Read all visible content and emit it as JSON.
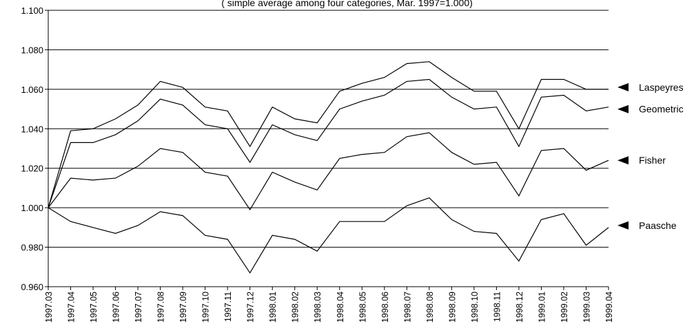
{
  "chart_data": {
    "type": "line",
    "subtitle": "( simple average among four categories, Mar. 1997=1.000)",
    "xlabel": "",
    "ylabel": "",
    "ylim": [
      0.96,
      1.1
    ],
    "y_ticks": [
      "0.960",
      "0.980",
      "1.000",
      "1.020",
      "1.040",
      "1.060",
      "1.080",
      "1.100"
    ],
    "grid": "horizontal",
    "legend": "right, labels with arrows",
    "x": [
      "1997.03",
      "1997.04",
      "1997.05",
      "1997.06",
      "1997.07",
      "1997.08",
      "1997.09",
      "1997.10",
      "1997.11",
      "1997.12",
      "1998.01",
      "1998.02",
      "1998.03",
      "1998.04",
      "1998.05",
      "1998.06",
      "1998.07",
      "1998.08",
      "1998.09",
      "1998.10",
      "1998.11",
      "1998.12",
      "1999.01",
      "1999.02",
      "1999.03",
      "1999.04"
    ],
    "series": [
      {
        "name": "Laspeyres",
        "values": [
          1.0,
          1.039,
          1.04,
          1.045,
          1.052,
          1.064,
          1.061,
          1.051,
          1.049,
          1.031,
          1.051,
          1.045,
          1.043,
          1.059,
          1.063,
          1.066,
          1.073,
          1.074,
          1.066,
          1.059,
          1.059,
          1.04,
          1.065,
          1.065,
          1.06,
          1.06
        ]
      },
      {
        "name": "Geometric",
        "values": [
          1.0,
          1.033,
          1.033,
          1.037,
          1.044,
          1.055,
          1.052,
          1.042,
          1.04,
          1.023,
          1.042,
          1.037,
          1.034,
          1.05,
          1.054,
          1.057,
          1.064,
          1.065,
          1.056,
          1.05,
          1.051,
          1.031,
          1.056,
          1.057,
          1.049,
          1.051
        ]
      },
      {
        "name": "Fisher",
        "values": [
          1.0,
          1.015,
          1.014,
          1.015,
          1.021,
          1.03,
          1.028,
          1.018,
          1.016,
          0.999,
          1.018,
          1.013,
          1.009,
          1.025,
          1.027,
          1.028,
          1.036,
          1.038,
          1.028,
          1.022,
          1.023,
          1.006,
          1.029,
          1.03,
          1.019,
          1.024
        ]
      },
      {
        "name": "Paasche",
        "values": [
          1.0,
          0.993,
          0.99,
          0.987,
          0.991,
          0.998,
          0.996,
          0.986,
          0.984,
          0.967,
          0.986,
          0.984,
          0.978,
          0.993,
          0.993,
          0.993,
          1.001,
          1.005,
          0.994,
          0.988,
          0.987,
          0.973,
          0.994,
          0.997,
          0.981,
          0.99
        ]
      }
    ]
  }
}
